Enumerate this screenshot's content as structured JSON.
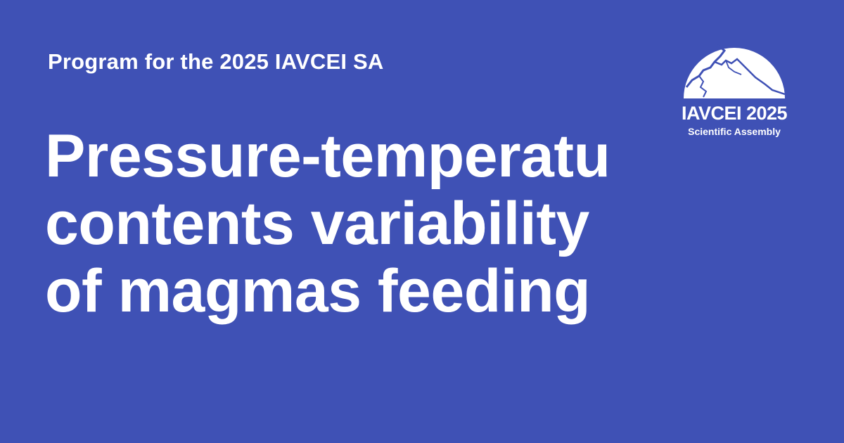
{
  "card": {
    "subtitle": "Program for the 2025 IAVCEI SA",
    "title_lines": [
      "Pressure-temperatu",
      "contents variability",
      "of magmas feeding"
    ]
  },
  "logo": {
    "icon": "volcano-mountain-icon",
    "main_text": "IAVCEI 2025",
    "sub_text": "Scientific Assembly"
  },
  "colors": {
    "background": "#3f51b5",
    "text": "#ffffff"
  }
}
